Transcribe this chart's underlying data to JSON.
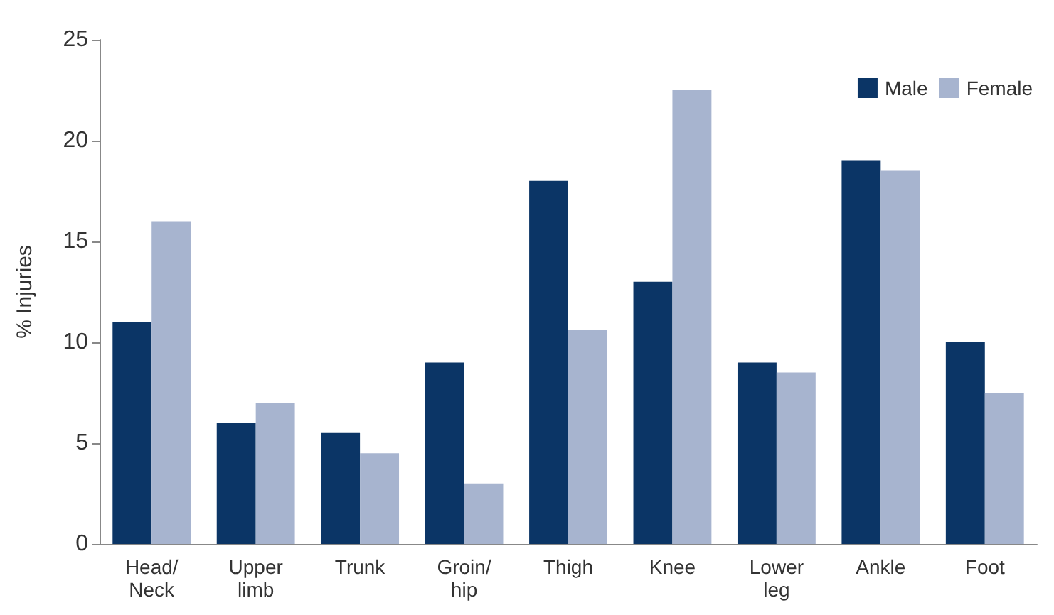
{
  "chart_data": {
    "type": "bar",
    "ylabel": "% Injuries",
    "categories": [
      "Head/\nNeck",
      "Upper\nlimb",
      "Trunk",
      "Groin/\nhip",
      "Thigh",
      "Knee",
      "Lower\nleg",
      "Ankle",
      "Foot"
    ],
    "series": [
      {
        "name": "Male",
        "color": "#0b3566",
        "values": [
          11,
          6,
          5.5,
          9,
          18,
          13,
          9,
          19,
          10
        ]
      },
      {
        "name": "Female",
        "color": "#a7b4cf",
        "values": [
          16,
          7,
          4.5,
          3,
          10.6,
          22.5,
          8.5,
          18.5,
          7.5
        ]
      }
    ],
    "ylim": [
      0,
      25
    ],
    "yticks": [
      0,
      5,
      10,
      15,
      20,
      25
    ],
    "grid": false,
    "legend": "top right"
  }
}
